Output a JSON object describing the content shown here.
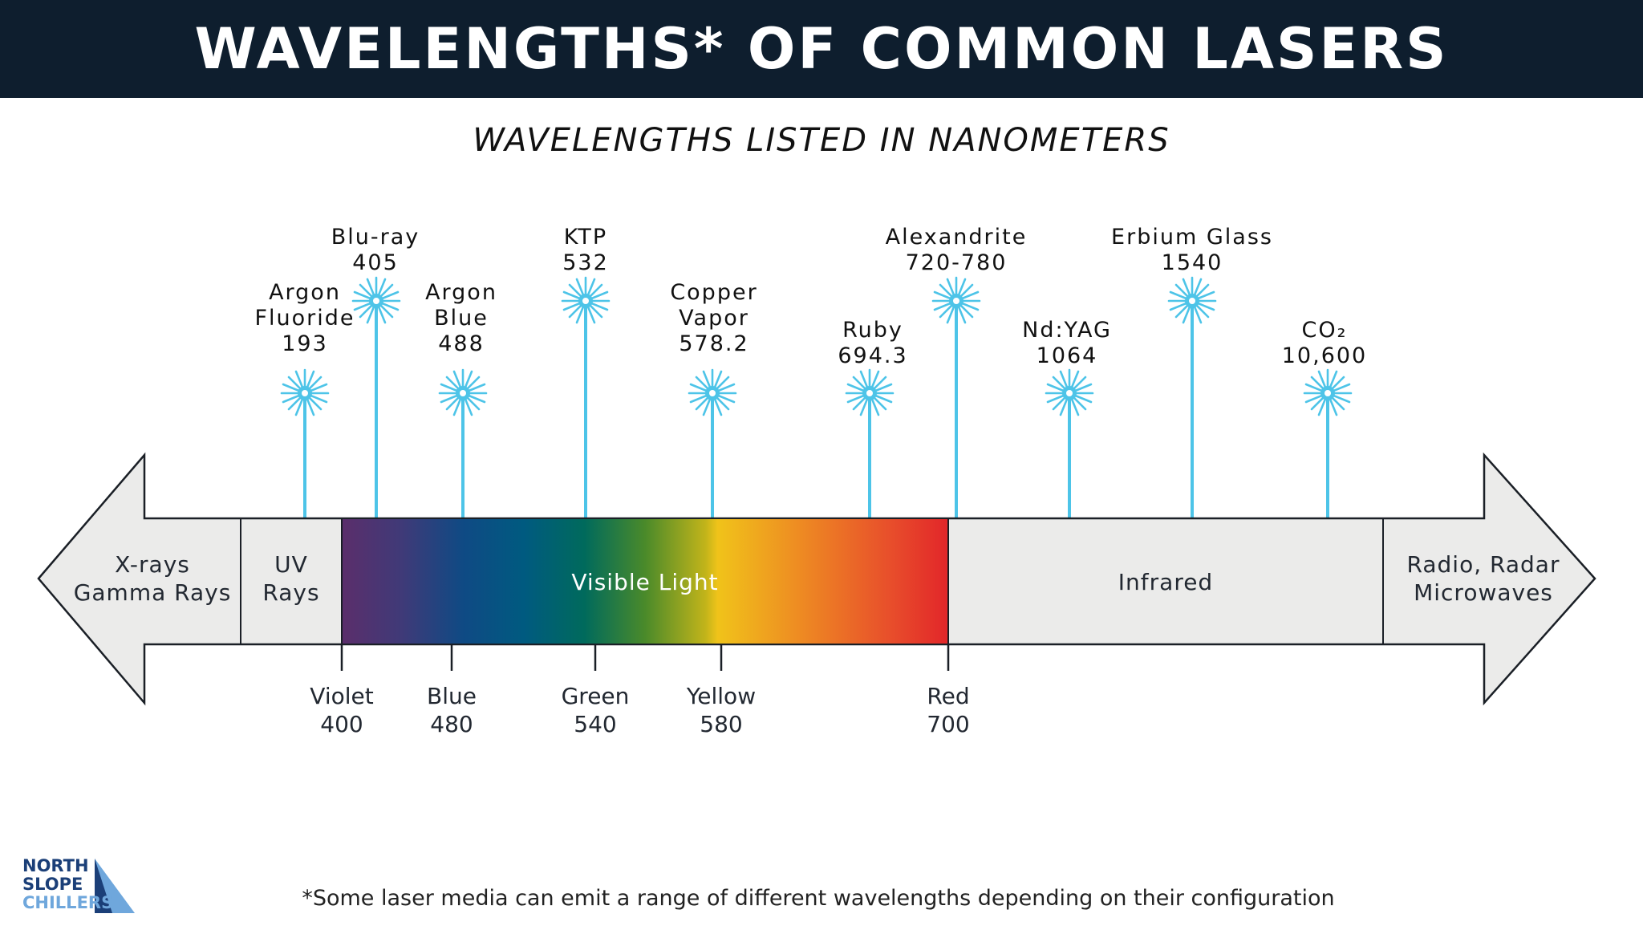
{
  "header": {
    "title": "WAVELENGTHS* OF COMMON LASERS"
  },
  "subtitle": "WAVELENGTHS LISTED IN NANOMETERS",
  "colors": {
    "header_bg": "#0e1e2e",
    "arrow_fill": "#ebebea",
    "star": "#4dc4e8",
    "logo_dark": "#1b3f78",
    "logo_light": "#6fa7dc"
  },
  "lasers": [
    {
      "name": "Argon Fluoride",
      "line1": "Argon",
      "line2": "Fluoride",
      "value": "193"
    },
    {
      "name": "Blu-ray",
      "line1": "Blu-ray",
      "value": "405"
    },
    {
      "name": "Argon Blue",
      "line1": "Argon",
      "line2": "Blue",
      "value": "488"
    },
    {
      "name": "KTP",
      "line1": "KTP",
      "value": "532"
    },
    {
      "name": "Copper Vapor",
      "line1": "Copper",
      "line2": "Vapor",
      "value": "578.2"
    },
    {
      "name": "Ruby",
      "line1": "Ruby",
      "value": "694.3"
    },
    {
      "name": "Alexandrite",
      "line1": "Alexandrite",
      "value": "720-780"
    },
    {
      "name": "Nd:YAG",
      "line1": "Nd:YAG",
      "value": "1064"
    },
    {
      "name": "Erbium Glass",
      "line1": "Erbium Glass",
      "value": "1540"
    },
    {
      "name": "CO2",
      "line1": "CO₂",
      "value": "10,600"
    }
  ],
  "spectrum": {
    "xrays": {
      "line1": "X-rays",
      "line2": "Gamma Rays"
    },
    "uv": {
      "line1": "UV",
      "line2": "Rays"
    },
    "visible": "Visible Light",
    "infrared": "Infrared",
    "radio": {
      "line1": "Radio, Radar",
      "line2": "Microwaves"
    }
  },
  "visible_ticks": [
    {
      "name": "Violet",
      "value": "400"
    },
    {
      "name": "Blue",
      "value": "480"
    },
    {
      "name": "Green",
      "value": "540"
    },
    {
      "name": "Yellow",
      "value": "580"
    },
    {
      "name": "Red",
      "value": "700"
    }
  ],
  "logo": {
    "line1": "NORTH",
    "line2": "SLOPE",
    "line3": "CHILLERS"
  },
  "footnote": "*Some laser media can emit a range of different wavelengths depending on their configuration"
}
